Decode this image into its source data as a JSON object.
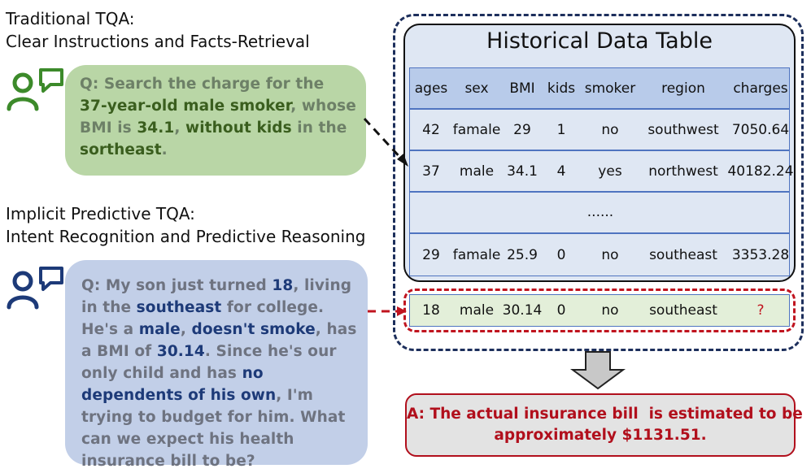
{
  "traditional": {
    "heading_line1": "Traditional TQA:",
    "heading_line2": "Clear Instructions and Facts-Retrieval",
    "question": [
      {
        "t": "Q: Search the charge for the ",
        "c": ""
      },
      {
        "t": "37-year-old male smoker",
        "c": "g"
      },
      {
        "t": ", whose BMI is ",
        "c": ""
      },
      {
        "t": "34.1",
        "c": "g"
      },
      {
        "t": ", ",
        "c": ""
      },
      {
        "t": "without kids",
        "c": "g"
      },
      {
        "t": " in the ",
        "c": ""
      },
      {
        "t": "sortheast",
        "c": "g"
      },
      {
        "t": ".",
        "c": ""
      }
    ]
  },
  "implicit": {
    "heading_line1": "Implicit Predictive TQA:",
    "heading_line2": "Intent Recognition and Predictive Reasoning",
    "question": [
      {
        "t": "Q: My son just turned ",
        "c": ""
      },
      {
        "t": "18",
        "c": "b"
      },
      {
        "t": ", living in the ",
        "c": ""
      },
      {
        "t": "southeast",
        "c": "b"
      },
      {
        "t": " for college. He's a ",
        "c": ""
      },
      {
        "t": "male",
        "c": "b"
      },
      {
        "t": ", ",
        "c": ""
      },
      {
        "t": "doesn't smoke",
        "c": "b"
      },
      {
        "t": ", has a BMI of ",
        "c": ""
      },
      {
        "t": "30.14",
        "c": "b"
      },
      {
        "t": ". Since he's our only child and has ",
        "c": ""
      },
      {
        "t": "no dependents of his own",
        "c": "b"
      },
      {
        "t": ", I'm trying to budget for him. What can we expect his health insurance bill to be?",
        "c": ""
      }
    ]
  },
  "table": {
    "title": "Historical Data Table",
    "columns": [
      "ages",
      "sex",
      "BMI",
      "kids",
      "smoker",
      "region",
      "charges"
    ],
    "rows": [
      [
        "42",
        "famale",
        "29",
        "1",
        "no",
        "southwest",
        "7050.64"
      ],
      [
        "37",
        "male",
        "34.1",
        "4",
        "yes",
        "northwest",
        "40182.24"
      ],
      [
        "29",
        "famale",
        "25.9",
        "0",
        "no",
        "southeast",
        "3353.28"
      ]
    ],
    "ellipsis": "......"
  },
  "query_row": [
    "18",
    "male",
    "30.14",
    "0",
    "no",
    "southeast",
    "?"
  ],
  "answer": {
    "line1": "A: The actual insurance bill  is estimated to be",
    "line2": "approximately $1131.51."
  },
  "colors": {
    "user_icon_green": "#3c8a2a",
    "user_icon_blue": "#1d3a78",
    "dashed_navy": "#1d2f5c",
    "dashed_red": "#c0141f"
  }
}
